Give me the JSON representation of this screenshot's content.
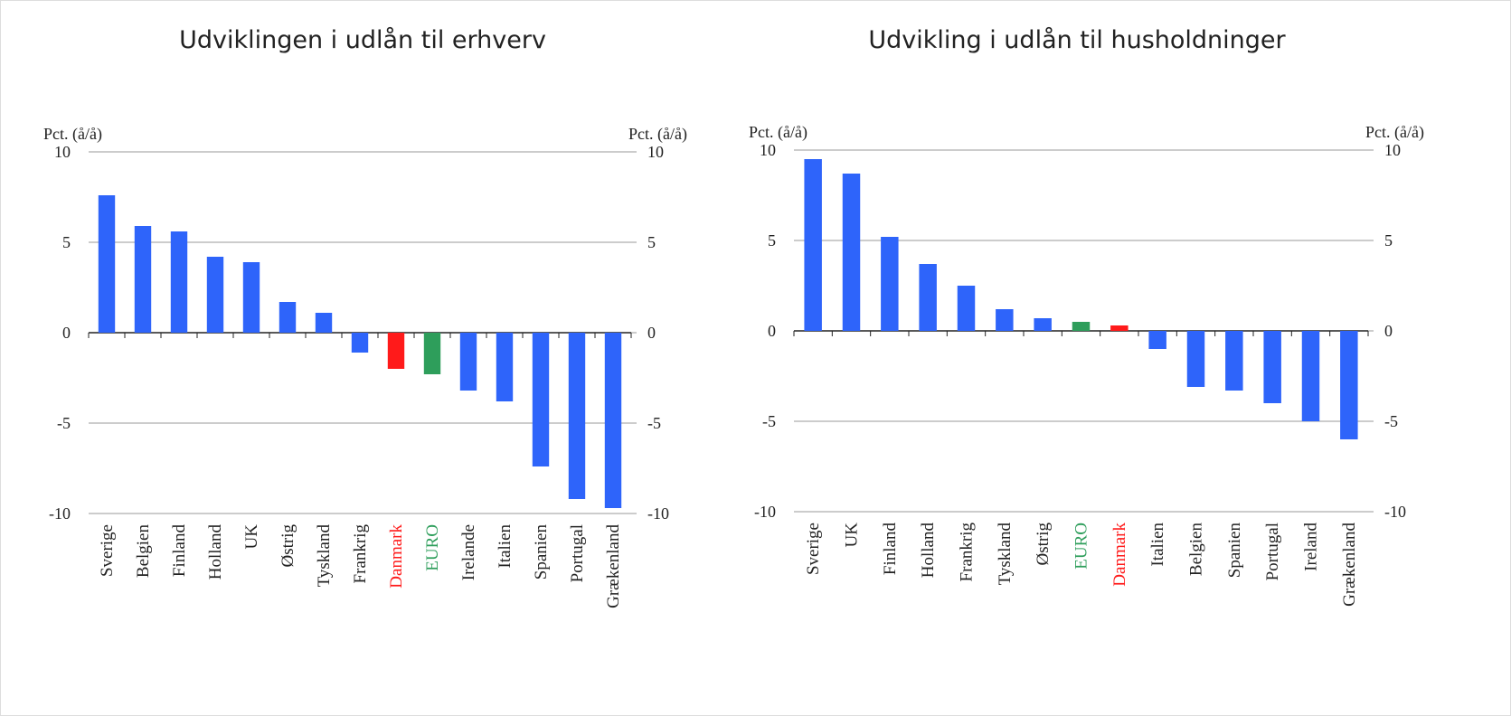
{
  "chart_data": [
    {
      "type": "bar",
      "title": "Udviklingen i udlån til erhverv",
      "ylabel": "Pct. (å/å)",
      "y2label": "Pct. (å/å)",
      "categories": [
        "Sverige",
        "Belgien",
        "Finland",
        "Holland",
        "UK",
        "Østrig",
        "Tyskland",
        "Frankrig",
        "Danmark",
        "EURO",
        "Irelande",
        "Italien",
        "Spanien",
        "Portugal",
        "Grækenland"
      ],
      "values": [
        7.6,
        5.9,
        5.6,
        4.2,
        3.9,
        1.7,
        1.1,
        -1.1,
        -2.0,
        -2.3,
        -3.2,
        -3.8,
        -7.4,
        -9.2,
        -9.7
      ],
      "color": "#2e64fa",
      "colors": [
        "#2e64fa",
        "#2e64fa",
        "#2e64fa",
        "#2e64fa",
        "#2e64fa",
        "#2e64fa",
        "#2e64fa",
        "#2e64fa",
        "#ff1a1a",
        "#2e9e5b",
        "#2e64fa",
        "#2e64fa",
        "#2e64fa",
        "#2e64fa",
        "#2e64fa"
      ],
      "ylim": [
        -10,
        10
      ],
      "yticks": [
        10,
        5,
        0,
        -5,
        -10
      ],
      "y2lim": [
        -10,
        10
      ],
      "y2ticks": [
        10,
        5,
        0,
        -5,
        -10
      ],
      "grid": true
    },
    {
      "type": "bar",
      "title": "Udvikling i udlån til husholdninger",
      "ylabel": "Pct. (å/å)",
      "y2label": "Pct. (å/å)",
      "categories": [
        "Sverige",
        "UK",
        "Finland",
        "Holland",
        "Frankrig",
        "Tyskland",
        "Østrig",
        "EURO",
        "Danmark",
        "Italien",
        "Belgien",
        "Spanien",
        "Portugal",
        "Ireland",
        "Grækenland"
      ],
      "values": [
        9.5,
        8.7,
        5.2,
        3.7,
        2.5,
        1.2,
        0.7,
        0.5,
        0.3,
        -1.0,
        -3.1,
        -3.3,
        -4.0,
        -5.0,
        -6.0
      ],
      "color": "#2e64fa",
      "colors": [
        "#2e64fa",
        "#2e64fa",
        "#2e64fa",
        "#2e64fa",
        "#2e64fa",
        "#2e64fa",
        "#2e64fa",
        "#2e9e5b",
        "#ff1a1a",
        "#2e64fa",
        "#2e64fa",
        "#2e64fa",
        "#2e64fa",
        "#2e64fa",
        "#2e64fa"
      ],
      "ylim": [
        -10,
        10
      ],
      "yticks": [
        10,
        5,
        0,
        -5,
        -10
      ],
      "y2lim": [
        -10,
        10
      ],
      "y2ticks": [
        10,
        5,
        0,
        -5,
        -10
      ],
      "grid": true
    }
  ]
}
